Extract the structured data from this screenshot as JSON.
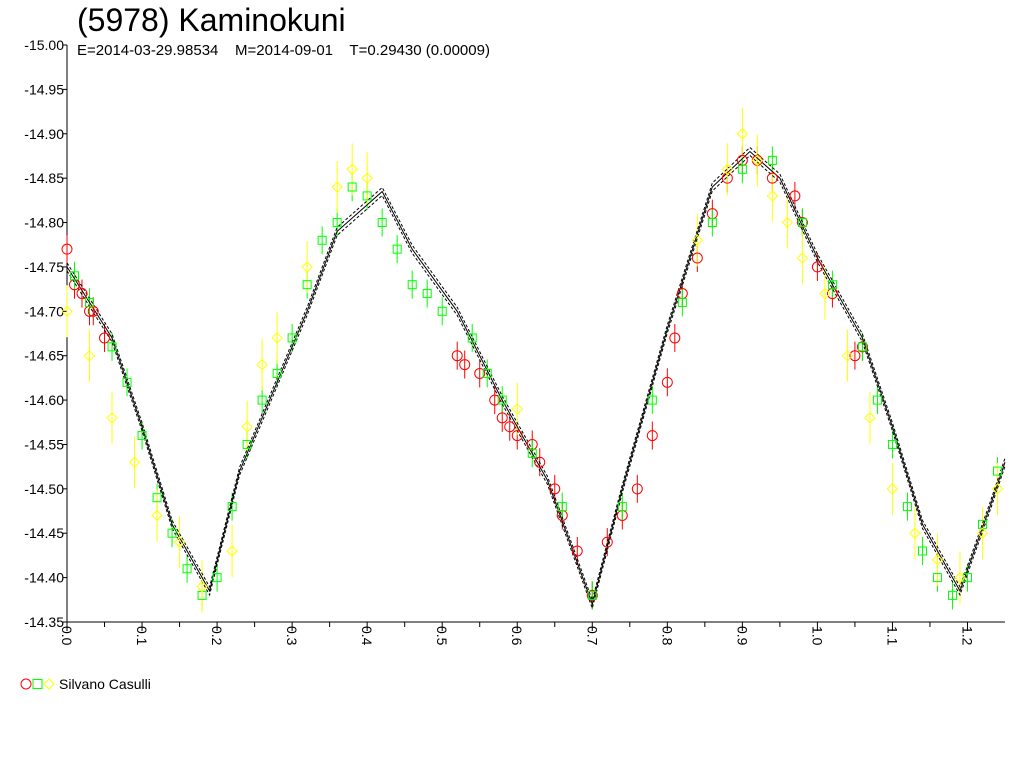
{
  "chart_data": {
    "type": "scatter",
    "title": "(5978) Kaminokuni",
    "subtitle": "E=2014-03-29.98534    M=2014-09-01    T=0.29430 (0.00009)",
    "xlim": [
      0.0,
      1.25
    ],
    "ylim": [
      -15.0,
      -14.35
    ],
    "x_ticks": [
      0.0,
      0.1,
      0.2,
      0.3,
      0.4,
      0.5,
      0.6,
      0.7,
      0.8,
      0.9,
      1.0,
      1.1,
      1.2
    ],
    "x_tick_labels": [
      "0.0",
      "0.1",
      "0.2",
      "0.3",
      "0.4",
      "0.5",
      "0.6",
      "0.7",
      "0.8",
      "0.9",
      "1.0",
      "1.1",
      "1.2"
    ],
    "y_ticks": [
      -15.0,
      -14.95,
      -14.9,
      -14.85,
      -14.8,
      -14.75,
      -14.7,
      -14.65,
      -14.6,
      -14.55,
      -14.5,
      -14.45,
      -14.4,
      -14.35
    ],
    "y_tick_labels": [
      "-15.00",
      "-14.95",
      "-14.90",
      "-14.85",
      "-14.80",
      "-14.75",
      "-14.70",
      "-14.65",
      "-14.60",
      "-14.55",
      "-14.50",
      "-14.45",
      "-14.40",
      "-14.35"
    ],
    "grid": false,
    "legend": {
      "placement": "bottom-left",
      "label": "Silvano Casulli"
    },
    "model_curve": {
      "x": [
        0.0,
        0.06,
        0.1,
        0.14,
        0.19,
        0.23,
        0.27,
        0.32,
        0.36,
        0.42,
        0.46,
        0.52,
        0.58,
        0.64,
        0.7,
        0.74,
        0.8,
        0.86,
        0.91,
        0.95,
        1.0,
        1.06,
        1.1,
        1.14,
        1.19,
        1.23,
        1.25
      ],
      "y": [
        -14.75,
        -14.67,
        -14.57,
        -14.46,
        -14.385,
        -14.52,
        -14.6,
        -14.7,
        -14.79,
        -14.835,
        -14.77,
        -14.7,
        -14.6,
        -14.51,
        -14.37,
        -14.5,
        -14.68,
        -14.84,
        -14.88,
        -14.85,
        -14.76,
        -14.67,
        -14.57,
        -14.46,
        -14.385,
        -14.48,
        -14.53
      ]
    },
    "series": [
      {
        "color": "#ff0000",
        "marker": "circle",
        "x": [
          0.0,
          0.01,
          0.02,
          0.03,
          0.035,
          0.05,
          0.52,
          0.53,
          0.55,
          0.57,
          0.58,
          0.59,
          0.6,
          0.62,
          0.63,
          0.65,
          0.66,
          0.68,
          0.7,
          0.72,
          0.74,
          0.76,
          0.78,
          0.8,
          0.81,
          0.82,
          0.84,
          0.86,
          0.88,
          0.9,
          0.92,
          0.94,
          0.97,
          0.98,
          1.0,
          1.02,
          1.05,
          1.06
        ],
        "y": [
          -14.77,
          -14.73,
          -14.72,
          -14.7,
          -14.7,
          -14.67,
          -14.65,
          -14.64,
          -14.63,
          -14.6,
          -14.58,
          -14.57,
          -14.56,
          -14.55,
          -14.53,
          -14.5,
          -14.47,
          -14.43,
          -14.38,
          -14.44,
          -14.47,
          -14.5,
          -14.56,
          -14.62,
          -14.67,
          -14.72,
          -14.76,
          -14.81,
          -14.85,
          -14.87,
          -14.87,
          -14.85,
          -14.83,
          -14.8,
          -14.75,
          -14.72,
          -14.65,
          -14.66
        ]
      },
      {
        "color": "#00ff00",
        "marker": "square",
        "x": [
          0.01,
          0.03,
          0.06,
          0.08,
          0.1,
          0.12,
          0.14,
          0.16,
          0.18,
          0.2,
          0.22,
          0.24,
          0.26,
          0.28,
          0.3,
          0.32,
          0.34,
          0.36,
          0.38,
          0.4,
          0.42,
          0.44,
          0.46,
          0.48,
          0.5,
          0.54,
          0.56,
          0.58,
          0.62,
          0.66,
          0.7,
          0.74,
          0.78,
          0.82,
          0.86,
          0.9,
          0.94,
          0.98,
          1.02,
          1.06,
          1.08,
          1.1,
          1.12,
          1.14,
          1.16,
          1.18,
          1.2,
          1.22,
          1.24
        ],
        "y": [
          -14.74,
          -14.71,
          -14.66,
          -14.62,
          -14.56,
          -14.49,
          -14.45,
          -14.41,
          -14.38,
          -14.4,
          -14.48,
          -14.55,
          -14.6,
          -14.63,
          -14.67,
          -14.73,
          -14.78,
          -14.8,
          -14.84,
          -14.83,
          -14.8,
          -14.77,
          -14.73,
          -14.72,
          -14.7,
          -14.67,
          -14.63,
          -14.6,
          -14.54,
          -14.48,
          -14.38,
          -14.48,
          -14.6,
          -14.71,
          -14.8,
          -14.86,
          -14.87,
          -14.8,
          -14.73,
          -14.66,
          -14.6,
          -14.55,
          -14.48,
          -14.43,
          -14.4,
          -14.38,
          -14.4,
          -14.46,
          -14.52
        ]
      },
      {
        "color": "#ffff00",
        "marker": "diamond",
        "x": [
          0.0,
          0.03,
          0.06,
          0.09,
          0.12,
          0.15,
          0.18,
          0.22,
          0.24,
          0.26,
          0.28,
          0.32,
          0.36,
          0.38,
          0.4,
          0.6,
          0.84,
          0.88,
          0.9,
          0.92,
          0.94,
          0.96,
          0.98,
          1.01,
          1.04,
          1.07,
          1.1,
          1.13,
          1.16,
          1.19,
          1.22,
          1.24
        ],
        "y": [
          -14.7,
          -14.65,
          -14.58,
          -14.53,
          -14.47,
          -14.44,
          -14.39,
          -14.43,
          -14.57,
          -14.64,
          -14.67,
          -14.75,
          -14.84,
          -14.86,
          -14.85,
          -14.59,
          -14.78,
          -14.86,
          -14.9,
          -14.87,
          -14.83,
          -14.8,
          -14.76,
          -14.72,
          -14.65,
          -14.58,
          -14.5,
          -14.45,
          -14.42,
          -14.4,
          -14.45,
          -14.5
        ]
      }
    ]
  }
}
